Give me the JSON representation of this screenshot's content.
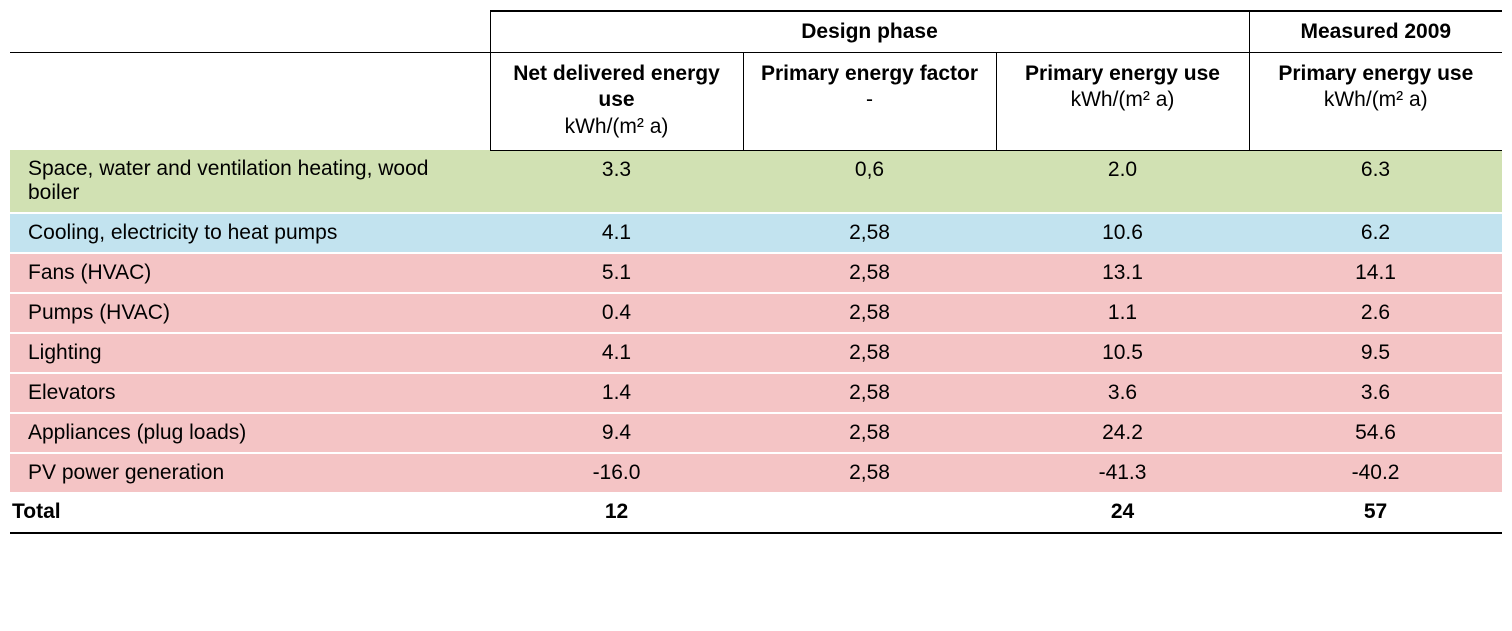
{
  "colors": {
    "green": "#d1e1b3",
    "blue": "#c2e3ef",
    "pink": "#f4c4c5",
    "white": "#ffffff",
    "rule": "#000000"
  },
  "header": {
    "group_design": "Design phase",
    "group_measured": "Measured 2009",
    "cols": [
      {
        "title": "Net delivered energy use",
        "unit": "kWh/(m² a)"
      },
      {
        "title": "Primary energy factor",
        "unit": "-"
      },
      {
        "title": "Primary energy use",
        "unit": "kWh/(m² a)"
      },
      {
        "title": "Primary energy use",
        "unit": "kWh/(m² a)"
      }
    ]
  },
  "rows": [
    {
      "label": "Space, water and ventilation heating, wood boiler",
      "color": "green",
      "v": [
        "3.3",
        "0,6",
        "2.0",
        "6.3"
      ]
    },
    {
      "label": "Cooling, electricity to heat pumps",
      "color": "blue",
      "v": [
        "4.1",
        "2,58",
        "10.6",
        "6.2"
      ]
    },
    {
      "label": "Fans (HVAC)",
      "color": "pink",
      "v": [
        "5.1",
        "2,58",
        "13.1",
        "14.1"
      ]
    },
    {
      "label": "Pumps (HVAC)",
      "color": "pink",
      "v": [
        "0.4",
        "2,58",
        "1.1",
        "2.6"
      ]
    },
    {
      "label": "Lighting",
      "color": "pink",
      "v": [
        "4.1",
        "2,58",
        "10.5",
        "9.5"
      ]
    },
    {
      "label": "Elevators",
      "color": "pink",
      "v": [
        "1.4",
        "2,58",
        "3.6",
        "3.6"
      ]
    },
    {
      "label": "Appliances (plug loads)",
      "color": "pink",
      "v": [
        "9.4",
        "2,58",
        "24.2",
        "54.6"
      ]
    },
    {
      "label": "PV power generation",
      "color": "pink",
      "v": [
        "-16.0",
        "2,58",
        "-41.3",
        "-40.2"
      ]
    }
  ],
  "total": {
    "label": "Total",
    "v": [
      "12",
      "",
      "24",
      "57"
    ]
  }
}
